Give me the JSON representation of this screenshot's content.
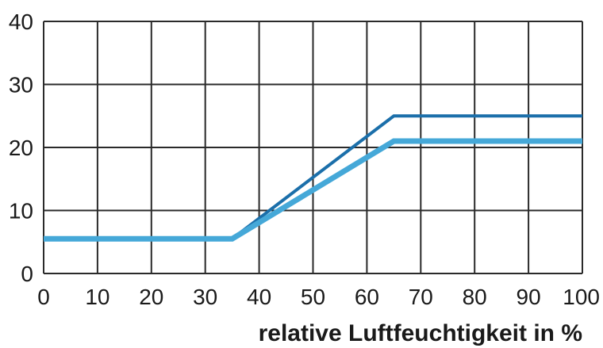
{
  "chart_data": {
    "type": "line",
    "title": "",
    "xlabel": "relative Luftfeuchtigkeit in %",
    "ylabel": "",
    "xlim": [
      0,
      100
    ],
    "ylim": [
      0,
      40
    ],
    "x_ticks": [
      "0",
      "10",
      "20",
      "30",
      "40",
      "50",
      "60",
      "70",
      "80",
      "90",
      "100"
    ],
    "y_ticks": [
      "0",
      "10",
      "20",
      "30",
      "40"
    ],
    "grid": true,
    "legend": "none",
    "series": [
      {
        "color": "#1b6faa",
        "x": [
          0,
          35,
          65,
          100
        ],
        "values": [
          5.5,
          5.5,
          25,
          25
        ]
      },
      {
        "color": "#45a8d8",
        "x": [
          0,
          35,
          65,
          100
        ],
        "values": [
          5.5,
          5.5,
          21,
          21
        ]
      }
    ],
    "grid_color": "#2a2a2a"
  }
}
